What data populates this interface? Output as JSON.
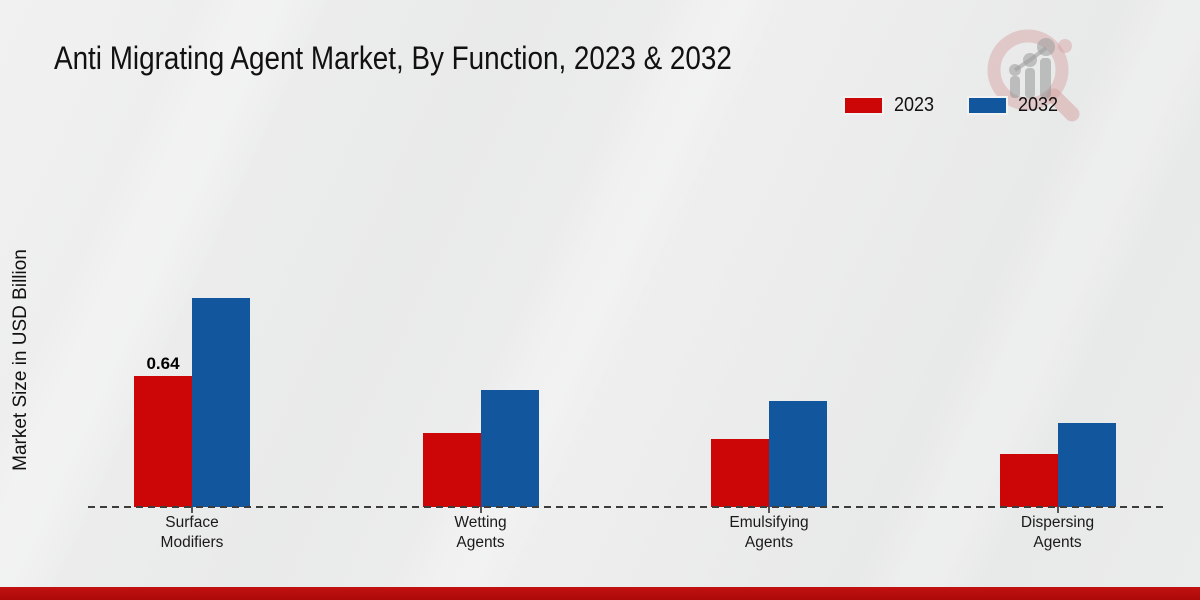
{
  "title": "Anti Migrating Agent Market, By Function, 2023 & 2032",
  "ylabel": "Market Size in USD Billion",
  "legend": [
    {
      "label": "2023",
      "color": "#cc0606"
    },
    {
      "label": "2032",
      "color": "#12569e"
    }
  ],
  "colors": {
    "series_2023": "#cc0606",
    "series_2032": "#12569e",
    "footer_strip": "#b90c0c",
    "background": "#eaeaea",
    "axis_line": "#3c3c3c",
    "text": "#111111"
  },
  "icons": {
    "brand_logo": "magnifier-growth-chart-watermark"
  },
  "chart_data": {
    "type": "bar",
    "title": "Anti Migrating Agent Market, By Function, 2023 & 2032",
    "xlabel": "",
    "ylabel": "Market Size in USD Billion",
    "categories": [
      "Surface Modifiers",
      "Wetting Agents",
      "Emulsifying Agents",
      "Dispersing Agents"
    ],
    "series": [
      {
        "name": "2023",
        "color": "#cc0606",
        "values": [
          0.64,
          0.36,
          0.33,
          0.26
        ]
      },
      {
        "name": "2032",
        "color": "#12569e",
        "values": [
          1.02,
          0.57,
          0.52,
          0.41
        ]
      }
    ],
    "value_labels": [
      {
        "series": "2023",
        "category": "Surface Modifiers",
        "text": "0.64"
      }
    ],
    "ylim": [
      0,
      1.1
    ],
    "grid": false,
    "y_ticks_visible": false,
    "legend_position": "top-right",
    "baseline_style": "dashed"
  }
}
